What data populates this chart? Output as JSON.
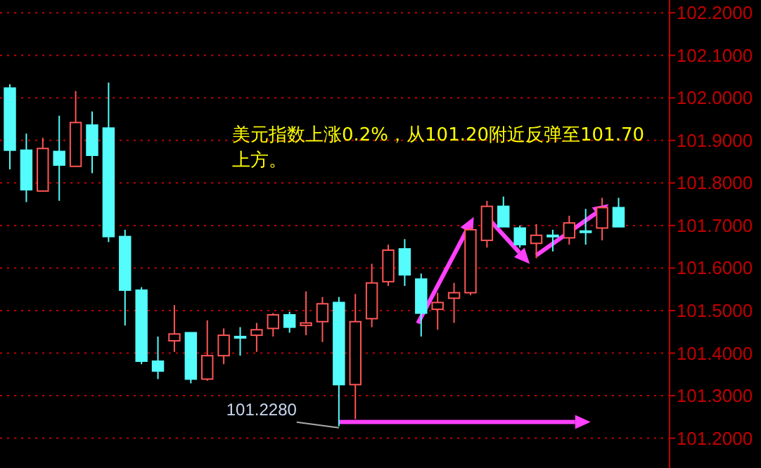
{
  "chart_data": {
    "type": "candlestick",
    "categories": [
      null,
      null,
      null,
      null,
      null,
      null,
      null,
      null,
      null,
      null,
      null,
      null,
      null,
      null,
      null,
      null,
      null,
      null,
      null,
      null,
      null,
      null,
      null,
      null,
      null,
      null,
      null,
      null,
      null,
      null,
      null,
      null,
      null,
      null,
      null,
      null,
      null,
      null
    ],
    "ohlc": [
      [
        102.023,
        102.032,
        101.832,
        101.877
      ],
      [
        101.877,
        101.916,
        101.755,
        101.784
      ],
      [
        101.781,
        101.906,
        101.781,
        101.881
      ],
      [
        101.874,
        101.958,
        101.758,
        101.842
      ],
      [
        101.839,
        102.016,
        101.839,
        101.942
      ],
      [
        101.936,
        101.968,
        101.823,
        101.865
      ],
      [
        101.929,
        102.036,
        101.661,
        101.674
      ],
      [
        101.674,
        101.69,
        101.465,
        101.548
      ],
      [
        101.548,
        101.555,
        101.374,
        101.381
      ],
      [
        101.381,
        101.439,
        101.339,
        101.358
      ],
      [
        101.429,
        101.513,
        101.403,
        101.445
      ],
      [
        101.448,
        101.448,
        101.329,
        101.339
      ],
      [
        101.339,
        101.477,
        101.335,
        101.394
      ],
      [
        101.394,
        101.458,
        101.374,
        101.442
      ],
      [
        101.439,
        101.461,
        101.394,
        101.439
      ],
      [
        101.442,
        101.471,
        101.403,
        101.455
      ],
      [
        101.458,
        101.494,
        101.439,
        101.49
      ],
      [
        101.49,
        101.497,
        101.448,
        101.461
      ],
      [
        101.465,
        101.545,
        101.442,
        101.471
      ],
      [
        101.474,
        101.532,
        101.426,
        101.516
      ],
      [
        101.519,
        101.532,
        101.228,
        101.326
      ],
      [
        101.326,
        101.539,
        101.245,
        101.474
      ],
      [
        101.481,
        101.61,
        101.461,
        101.565
      ],
      [
        101.568,
        101.655,
        101.558,
        101.642
      ],
      [
        101.645,
        101.668,
        101.558,
        101.584
      ],
      [
        101.574,
        101.587,
        101.439,
        101.494
      ],
      [
        101.503,
        101.542,
        101.455,
        101.519
      ],
      [
        101.529,
        101.565,
        101.471,
        101.542
      ],
      [
        101.542,
        101.697,
        101.536,
        101.69
      ],
      [
        101.665,
        101.758,
        101.648,
        101.745
      ],
      [
        101.745,
        101.768,
        101.697,
        101.697
      ],
      [
        101.694,
        101.7,
        101.648,
        101.655
      ],
      [
        101.658,
        101.703,
        101.623,
        101.677
      ],
      [
        101.677,
        101.69,
        101.639,
        101.677
      ],
      [
        101.671,
        101.723,
        101.655,
        101.706
      ],
      [
        101.687,
        101.739,
        101.655,
        101.687
      ],
      [
        101.694,
        101.765,
        101.665,
        101.742
      ],
      [
        101.742,
        101.765,
        101.697,
        101.697
      ]
    ],
    "colors": [
      "#54fcfc",
      "#54fcfc",
      "#ff5555",
      "#54fcfc",
      "#ff5555",
      "#54fcfc",
      "#54fcfc",
      "#54fcfc",
      "#54fcfc",
      "#54fcfc",
      "#ff5555",
      "#54fcfc",
      "#ff5555",
      "#ff5555",
      "#54fcfc",
      "#ff5555",
      "#ff5555",
      "#54fcfc",
      "#ff5555",
      "#ff5555",
      "#54fcfc",
      "#ff5555",
      "#ff5555",
      "#ff5555",
      "#54fcfc",
      "#54fcfc",
      "#ff5555",
      "#ff5555",
      "#ff5555",
      "#ff5555",
      "#54fcfc",
      "#54fcfc",
      "#ff5555",
      "#54fcfc",
      "#ff5555",
      "#54fcfc",
      "#ff5555",
      "#54fcfc"
    ],
    "ylim": [
      101.13,
      102.23
    ],
    "yticks": [
      {
        "value": 102.2,
        "label": "102.2000"
      },
      {
        "value": 102.1,
        "label": "102.1000"
      },
      {
        "value": 102.0,
        "label": "102.0000"
      },
      {
        "value": 101.9,
        "label": "101.9000"
      },
      {
        "value": 101.8,
        "label": "101.8000"
      },
      {
        "value": 101.7,
        "label": "101.7000"
      },
      {
        "value": 101.6,
        "label": "101.6000"
      },
      {
        "value": 101.5,
        "label": "101.5000"
      },
      {
        "value": 101.4,
        "label": "101.4000"
      },
      {
        "value": 101.3,
        "label": "101.3000"
      },
      {
        "value": 101.2,
        "label": "101.2000"
      }
    ],
    "grid": "y",
    "annotations": [
      "美元指数上涨0.2%，从101.20附近反弹至101.70上方。",
      "101.2280"
    ]
  }
}
